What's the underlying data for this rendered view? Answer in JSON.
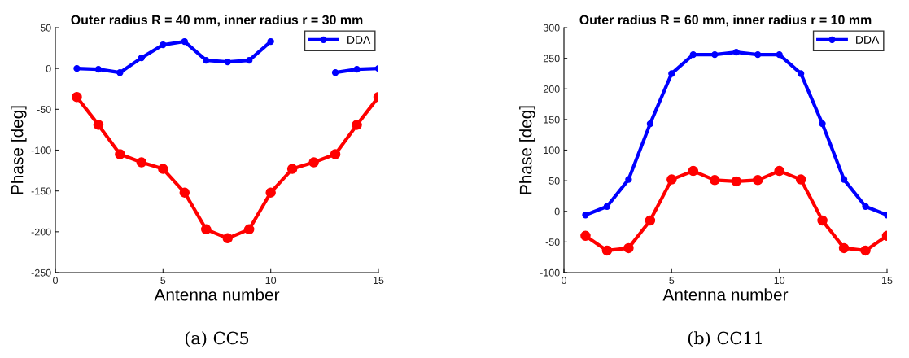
{
  "chart_data": [
    {
      "type": "line",
      "title": "Outer radius R = 40 mm, inner radius r = 30 mm",
      "xlabel": "Antenna number",
      "ylabel": "Phase [deg]",
      "x": [
        1,
        2,
        3,
        4,
        5,
        6,
        7,
        8,
        9,
        10,
        11,
        12,
        13,
        14,
        15
      ],
      "series": [
        {
          "name": "DDA",
          "color": "#0000ff",
          "values": [
            0,
            -1,
            -5,
            13,
            29,
            33,
            10,
            8,
            10,
            33,
            null,
            null,
            -5,
            -1,
            0
          ]
        },
        {
          "color": "#ff0000",
          "values": [
            -35,
            -69,
            -105,
            -115,
            -123,
            -152,
            -197,
            -208,
            -197,
            -152,
            -123,
            -115,
            -105,
            -69,
            -35
          ]
        }
      ],
      "xlim": [
        0,
        15
      ],
      "xticks": [
        0,
        5,
        10,
        15
      ],
      "ylim": [
        -250,
        50
      ],
      "yticks": [
        -250,
        -200,
        -150,
        -100,
        -50,
        0,
        50
      ],
      "grid": false,
      "legend": "top right",
      "marker": "circle",
      "annotations": [
        "(a) CC5"
      ]
    },
    {
      "type": "line",
      "title": "Outer radius R = 60 mm, inner radius r = 10 mm",
      "xlabel": "Antenna number",
      "ylabel": "Phase [deg]",
      "x": [
        1,
        2,
        3,
        4,
        5,
        6,
        7,
        8,
        9,
        10,
        11,
        12,
        13,
        14,
        15
      ],
      "series": [
        {
          "name": "DDA",
          "color": "#0000ff",
          "values": [
            -6,
            8,
            52,
            143,
            225,
            256,
            256,
            260,
            256,
            256,
            225,
            143,
            52,
            8,
            -6
          ]
        },
        {
          "color": "#ff0000",
          "values": [
            -40,
            -64,
            -60,
            -15,
            52,
            66,
            51,
            49,
            51,
            66,
            52,
            -15,
            -60,
            -64,
            -40
          ]
        }
      ],
      "xlim": [
        0,
        15
      ],
      "xticks": [
        0,
        5,
        10,
        15
      ],
      "ylim": [
        -100,
        300
      ],
      "yticks": [
        -100,
        -50,
        0,
        50,
        100,
        150,
        200,
        250,
        300
      ],
      "grid": false,
      "legend": "top right",
      "marker": "circle",
      "annotations": [
        "(b) CC11"
      ]
    }
  ]
}
